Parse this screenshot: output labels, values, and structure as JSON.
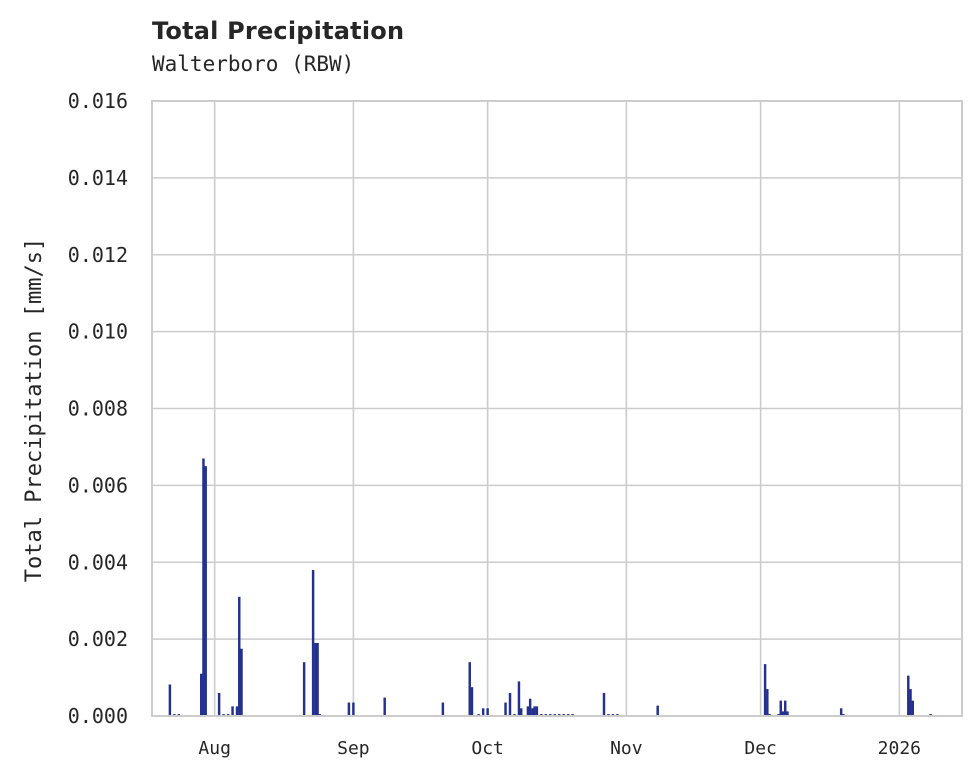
{
  "chart_data": {
    "type": "bar",
    "title": "Total Precipitation",
    "subtitle": "Walterboro (RBW)",
    "xlabel": "",
    "ylabel": "Total Precipitation [mm/s]",
    "ylim": [
      0,
      0.016
    ],
    "yticks": [
      "0.000",
      "0.002",
      "0.004",
      "0.006",
      "0.008",
      "0.010",
      "0.012",
      "0.014",
      "0.016"
    ],
    "xticks": [
      {
        "label": "Aug",
        "date": "2025-08-01"
      },
      {
        "label": "Sep",
        "date": "2025-09-01"
      },
      {
        "label": "Oct",
        "date": "2025-10-01"
      },
      {
        "label": "Nov",
        "date": "2025-11-01"
      },
      {
        "label": "Dec",
        "date": "2025-12-01"
      },
      {
        "label": "2026",
        "date": "2026-01-01"
      }
    ],
    "xlim": [
      "2025-07-18",
      "2026-01-15"
    ],
    "grid": true,
    "bar_color": "#24318f",
    "grid_color": "#cccccc",
    "series": [
      {
        "name": "Total Precipitation",
        "points": [
          {
            "x": "2025-07-22",
            "y": 0.00082
          },
          {
            "x": "2025-07-23",
            "y": 5e-05
          },
          {
            "x": "2025-07-24",
            "y": 5e-05
          },
          {
            "x": "2025-07-29",
            "y": 0.0011
          },
          {
            "x": "2025-07-29.5",
            "y": 0.0067
          },
          {
            "x": "2025-07-30",
            "y": 0.0065
          },
          {
            "x": "2025-08-02",
            "y": 0.0006
          },
          {
            "x": "2025-08-03",
            "y": 5e-05
          },
          {
            "x": "2025-08-04",
            "y": 5e-05
          },
          {
            "x": "2025-08-05",
            "y": 0.00025
          },
          {
            "x": "2025-08-06",
            "y": 0.00025
          },
          {
            "x": "2025-08-06.5",
            "y": 0.0031
          },
          {
            "x": "2025-08-07",
            "y": 0.00175
          },
          {
            "x": "2025-08-21",
            "y": 0.0014
          },
          {
            "x": "2025-08-23",
            "y": 0.0038
          },
          {
            "x": "2025-08-23.5",
            "y": 0.0019
          },
          {
            "x": "2025-08-24",
            "y": 0.0019
          },
          {
            "x": "2025-08-24.5",
            "y": 5e-05
          },
          {
            "x": "2025-08-31",
            "y": 0.00035
          },
          {
            "x": "2025-09-01",
            "y": 0.00035
          },
          {
            "x": "2025-09-08",
            "y": 0.00048
          },
          {
            "x": "2025-09-21",
            "y": 0.00035
          },
          {
            "x": "2025-09-27",
            "y": 0.0014
          },
          {
            "x": "2025-09-27.5",
            "y": 0.00075
          },
          {
            "x": "2025-09-29",
            "y": 5e-05
          },
          {
            "x": "2025-09-30",
            "y": 0.0002
          },
          {
            "x": "2025-10-01",
            "y": 0.0002
          },
          {
            "x": "2025-10-05",
            "y": 0.00035
          },
          {
            "x": "2025-10-06",
            "y": 0.0006
          },
          {
            "x": "2025-10-07",
            "y": 5e-05
          },
          {
            "x": "2025-10-08",
            "y": 0.0009
          },
          {
            "x": "2025-10-08.5",
            "y": 0.0002
          },
          {
            "x": "2025-10-10",
            "y": 0.00025
          },
          {
            "x": "2025-10-10.5",
            "y": 0.00045
          },
          {
            "x": "2025-10-11",
            "y": 0.0002
          },
          {
            "x": "2025-10-11.5",
            "y": 0.00025
          },
          {
            "x": "2025-10-12",
            "y": 0.00025
          },
          {
            "x": "2025-10-13",
            "y": 5e-05
          },
          {
            "x": "2025-10-14",
            "y": 5e-05
          },
          {
            "x": "2025-10-15",
            "y": 5e-05
          },
          {
            "x": "2025-10-16",
            "y": 5e-05
          },
          {
            "x": "2025-10-17",
            "y": 5e-05
          },
          {
            "x": "2025-10-18",
            "y": 5e-05
          },
          {
            "x": "2025-10-19",
            "y": 5e-05
          },
          {
            "x": "2025-10-20",
            "y": 5e-05
          },
          {
            "x": "2025-10-27",
            "y": 0.0006
          },
          {
            "x": "2025-10-28",
            "y": 5e-05
          },
          {
            "x": "2025-10-29",
            "y": 5e-05
          },
          {
            "x": "2025-10-30",
            "y": 5e-05
          },
          {
            "x": "2025-11-08",
            "y": 0.00027
          },
          {
            "x": "2025-12-02",
            "y": 0.00135
          },
          {
            "x": "2025-12-02.5",
            "y": 0.0007
          },
          {
            "x": "2025-12-03",
            "y": 5e-05
          },
          {
            "x": "2025-12-05",
            "y": 5e-05
          },
          {
            "x": "2025-12-05.5",
            "y": 0.0004
          },
          {
            "x": "2025-12-06",
            "y": 0.00012
          },
          {
            "x": "2025-12-06.5",
            "y": 0.0004
          },
          {
            "x": "2025-12-07",
            "y": 0.00012
          },
          {
            "x": "2025-12-19",
            "y": 0.0002
          },
          {
            "x": "2025-12-19.5",
            "y": 5e-05
          },
          {
            "x": "2026-01-03",
            "y": 0.00105
          },
          {
            "x": "2026-01-03.5",
            "y": 0.0007
          },
          {
            "x": "2026-01-04",
            "y": 0.0004
          },
          {
            "x": "2026-01-08",
            "y": 5e-05
          }
        ]
      }
    ]
  }
}
